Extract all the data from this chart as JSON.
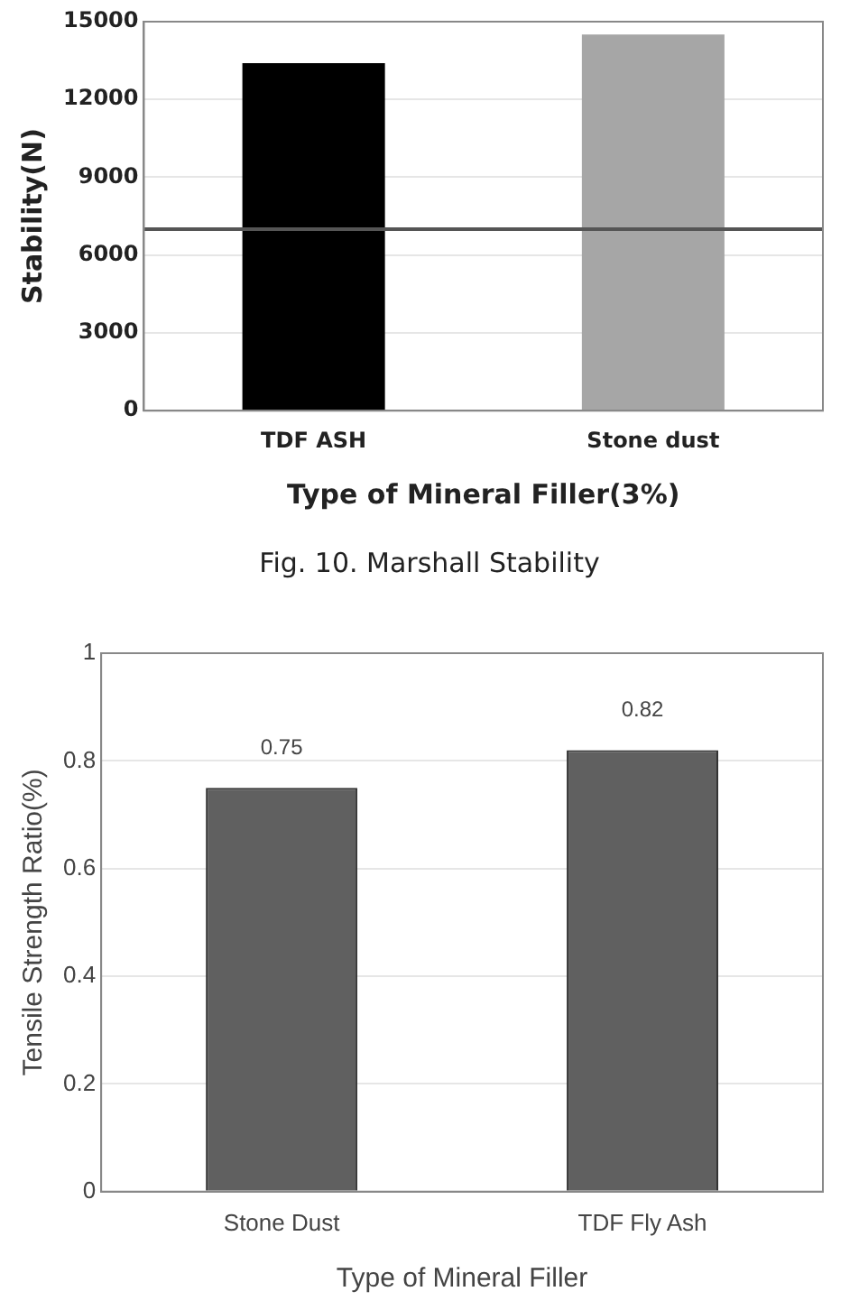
{
  "chart_data": [
    {
      "type": "bar",
      "categories": [
        "TDF ASH",
        "Stone dust"
      ],
      "values": [
        13400,
        14500
      ],
      "colors": [
        "#000000",
        "#a6a6a6"
      ],
      "xlabel": "Type of Mineral Filler(3%)",
      "ylabel": "Stability(N)",
      "ylim": [
        0,
        15000
      ],
      "yticks": [
        0,
        3000,
        6000,
        9000,
        12000,
        15000
      ],
      "grid": "y",
      "ref_lines": [
        {
          "axis": "y",
          "value": 7000,
          "color": "#555555"
        }
      ],
      "annotations": [
        "Fig. 10. Marshall Stability"
      ]
    },
    {
      "type": "bar",
      "categories": [
        "Stone Dust",
        "TDF Fly Ash"
      ],
      "values": [
        0.75,
        0.82
      ],
      "color": "#606060",
      "xlabel": "Type of Mineral Filler",
      "ylabel": "Tensile Strength Ratio(%)",
      "ylim": [
        0,
        1
      ],
      "yticks": [
        0,
        0.2,
        0.4,
        0.6,
        0.8,
        1
      ],
      "grid": "y",
      "data_labels": true
    }
  ]
}
